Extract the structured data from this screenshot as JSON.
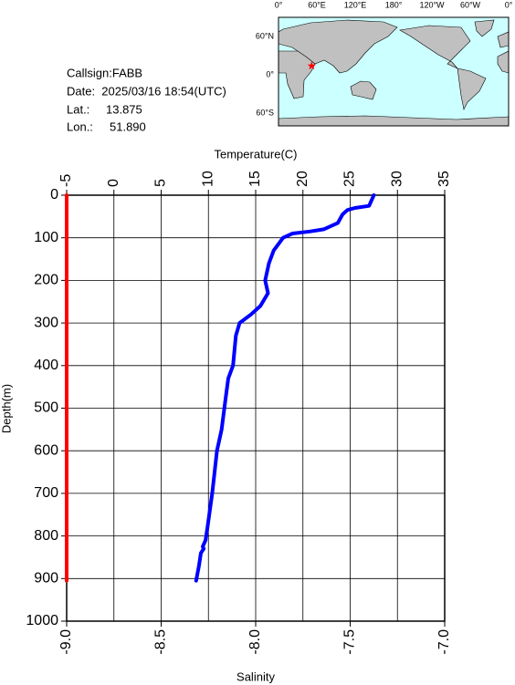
{
  "info": {
    "callsign": "Callsign:FABB",
    "date": "Date:  2025/03/16 18:54(UTC)",
    "lat_label": "Lat.:",
    "lat": 13.875,
    "lon_label": "Lon.:",
    "lon": {
      "value": 51.89,
      "label": "51.890"
    }
  },
  "map": {
    "lon_labels": [
      "0°",
      "60°E",
      "120°E",
      "180°",
      "120°W",
      "60°W",
      "0°"
    ],
    "lat_labels": [
      "60°N",
      "0°",
      "60°S"
    ]
  },
  "chart_data": {
    "type": "profile",
    "xlabel": "Temperature(C)",
    "ylabel": "Depth(m)",
    "x2label": "Salinity",
    "xlim": [
      -5,
      35
    ],
    "xticks": [
      -5,
      0,
      5,
      10,
      15,
      20,
      25,
      30,
      35
    ],
    "x2lim": [
      -9.0,
      -7.0
    ],
    "x2ticks": [
      {
        "value": -9.0,
        "label": "-9.0"
      },
      {
        "value": -8.5,
        "label": "-8.5"
      },
      {
        "value": -8.0,
        "label": "-8.0"
      },
      {
        "value": -7.5,
        "label": "-7.5"
      },
      {
        "value": -7.0,
        "label": "-7.0"
      }
    ],
    "ylim": [
      0,
      1000
    ],
    "yticks": [
      0,
      100,
      200,
      300,
      400,
      500,
      600,
      700,
      800,
      900,
      1000
    ],
    "grid": true,
    "series": [
      {
        "axis": "x",
        "color": "#0000ff",
        "depth": [
          0,
          10,
          25,
          30,
          35,
          45,
          65,
          80,
          85,
          90,
          100,
          130,
          160,
          200,
          230,
          260,
          280,
          300,
          330,
          400,
          430,
          480,
          550,
          600,
          660,
          700,
          780,
          810,
          825,
          830,
          840,
          870,
          905
        ],
        "values": [
          27.5,
          27.3,
          27.0,
          25.5,
          24.7,
          24.2,
          23.7,
          22.2,
          20.8,
          18.9,
          17.9,
          16.9,
          16.4,
          16.0,
          16.3,
          15.5,
          14.5,
          13.3,
          12.9,
          12.6,
          12.1,
          11.8,
          11.4,
          10.9,
          10.6,
          10.4,
          9.9,
          9.7,
          9.4,
          9.5,
          9.2,
          9.0,
          8.7
        ]
      },
      {
        "axis": "x2",
        "color": "#ff0000",
        "depth": [
          0,
          905
        ],
        "values": [
          -9.0,
          -9.0
        ]
      }
    ]
  }
}
